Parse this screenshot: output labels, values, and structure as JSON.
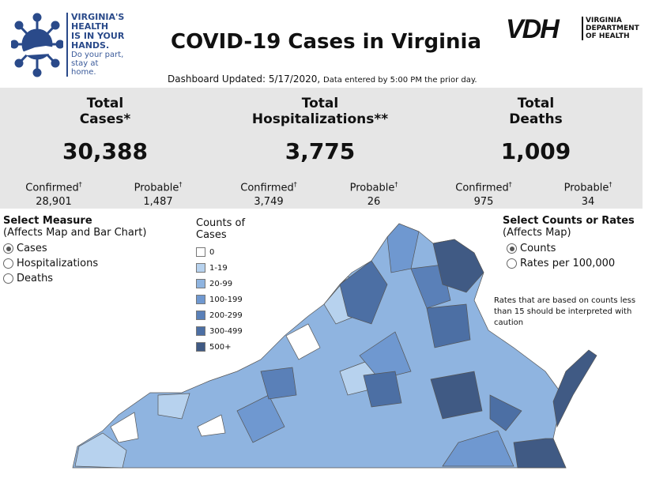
{
  "header": {
    "logo_text": [
      "VIRGINIA'S",
      "HEALTH",
      "IS IN YOUR",
      "HANDS."
    ],
    "logo_sub": [
      "Do your part,",
      "stay at home."
    ],
    "title": "COVID-19 Cases in Virginia",
    "updated": "Dashboard Updated: 5/17/2020,",
    "updated_note": "Data entered by 5:00 PM the prior day.",
    "vdh_logo": "VDH",
    "vdh_sub": [
      "VIRGINIA",
      "DEPARTMENT",
      "OF HEALTH"
    ]
  },
  "stats": [
    {
      "label1": "Total",
      "label2": "Cases*",
      "value": "30,388",
      "confirmed_label": "Confirmed",
      "confirmed": "28,901",
      "probable_label": "Probable",
      "probable": "1,487"
    },
    {
      "label1": "Total",
      "label2": "Hospitalizations**",
      "value": "3,775",
      "confirmed_label": "Confirmed",
      "confirmed": "3,749",
      "probable_label": "Probable",
      "probable": "26"
    },
    {
      "label1": "Total",
      "label2": "Deaths",
      "value": "1,009",
      "confirmed_label": "Confirmed",
      "confirmed": "975",
      "probable_label": "Probable",
      "probable": "34"
    }
  ],
  "dagger": "†",
  "measure": {
    "title": "Select Measure",
    "subtitle": "(Affects Map and Bar Chart)",
    "options": [
      "Cases",
      "Hospitalizations",
      "Deaths"
    ],
    "selected": "Cases"
  },
  "legend": {
    "title1": "Counts of",
    "title2": "Cases",
    "items": [
      {
        "label": "0",
        "color": "#ffffff"
      },
      {
        "label": "1-19",
        "color": "#b7d2ee"
      },
      {
        "label": "20-99",
        "color": "#8fb4e0"
      },
      {
        "label": "100-199",
        "color": "#6f98d0"
      },
      {
        "label": "200-299",
        "color": "#5a80b8"
      },
      {
        "label": "300-499",
        "color": "#4c6fa4"
      },
      {
        "label": "500+",
        "color": "#405a84"
      }
    ]
  },
  "counts_rates": {
    "title": "Select Counts or Rates",
    "subtitle": "(Affects Map)",
    "options": [
      "Counts",
      "Rates per 100,000"
    ],
    "selected": "Counts"
  },
  "note": "Rates that are based on counts less than 15 should be interpreted with caution"
}
